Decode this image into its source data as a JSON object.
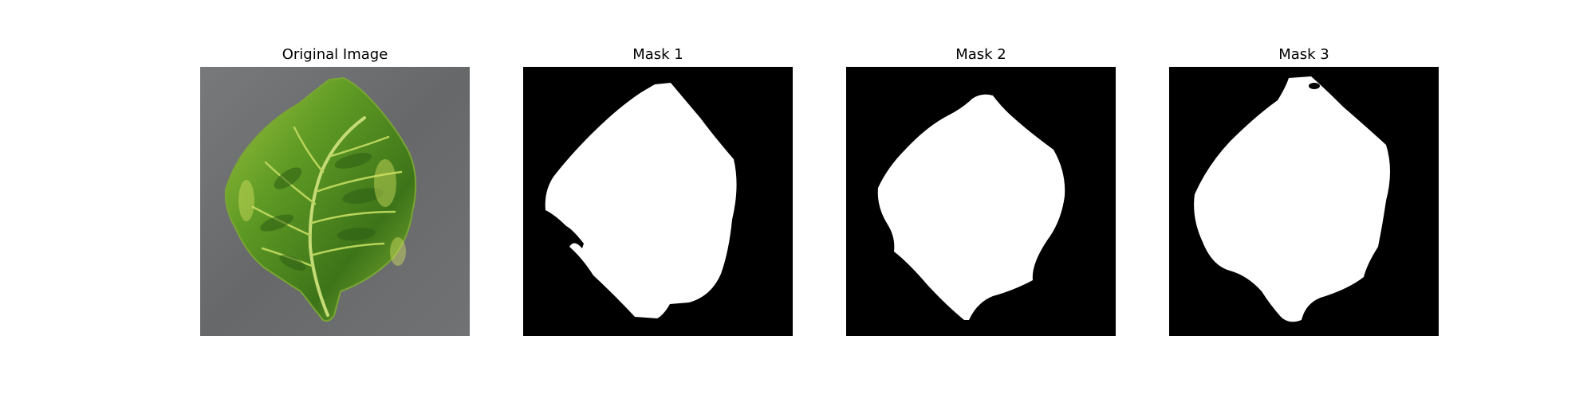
{
  "figure": {
    "panels": [
      {
        "title": "Original Image",
        "kind": "photo",
        "subject": "leaf"
      },
      {
        "title": "Mask 1",
        "kind": "mask"
      },
      {
        "title": "Mask 2",
        "kind": "mask"
      },
      {
        "title": "Mask 3",
        "kind": "mask"
      }
    ]
  },
  "colors": {
    "background": "#ffffff",
    "mask_background": "#000000",
    "mask_foreground": "#ffffff",
    "photo_background": "#6d6f71",
    "leaf_dark": "#3f7a1c",
    "leaf_mid": "#6aa82a",
    "leaf_light": "#b7d24a"
  }
}
